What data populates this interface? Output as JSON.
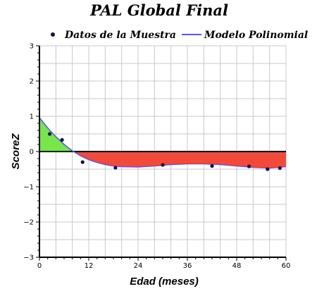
{
  "chart_data": {
    "type": "scatter",
    "title": "PAL Global Final",
    "xlabel": "Edad (meses)",
    "ylabel": "ScoreZ",
    "xlim": [
      0,
      60
    ],
    "ylim": [
      -3,
      3
    ],
    "xticks": [
      0,
      12,
      24,
      36,
      48,
      60
    ],
    "yticks": [
      -3,
      -2,
      -1,
      0,
      1,
      2,
      3
    ],
    "xtick_labels": [
      "0",
      "12",
      "24",
      "36",
      "48",
      "60"
    ],
    "ytick_labels": [
      "−3",
      "−2",
      "−1",
      "0",
      "1",
      "2",
      "3"
    ],
    "grid": true,
    "legend": {
      "position": "top",
      "entries": [
        "Datos de la Muestra",
        "Modelo Polinomial"
      ]
    },
    "series": [
      {
        "name": "Datos de la Muestra",
        "kind": "points",
        "color": "#10104a",
        "x": [
          2.5,
          5.5,
          10.5,
          18.5,
          30,
          42,
          51,
          55.5,
          58.5
        ],
        "y": [
          0.5,
          0.33,
          -0.3,
          -0.46,
          -0.38,
          -0.41,
          -0.42,
          -0.5,
          -0.47
        ]
      },
      {
        "name": "Modelo Polinomial",
        "kind": "curve",
        "color": "#5a5ae6",
        "x": [
          0,
          2,
          4,
          6,
          8,
          10,
          12,
          14,
          16,
          18,
          20,
          24,
          28,
          32,
          36,
          40,
          44,
          48,
          52,
          56,
          60
        ],
        "y": [
          0.96,
          0.67,
          0.42,
          0.2,
          0.02,
          -0.12,
          -0.23,
          -0.31,
          -0.37,
          -0.41,
          -0.43,
          -0.44,
          -0.41,
          -0.37,
          -0.35,
          -0.35,
          -0.37,
          -0.41,
          -0.45,
          -0.47,
          -0.43
        ]
      }
    ],
    "fill_colors": {
      "positive": "#77e64a",
      "negative": "#f24a3a"
    },
    "zero_line_color": "#000000",
    "grid_color": "#c8c8c8"
  }
}
